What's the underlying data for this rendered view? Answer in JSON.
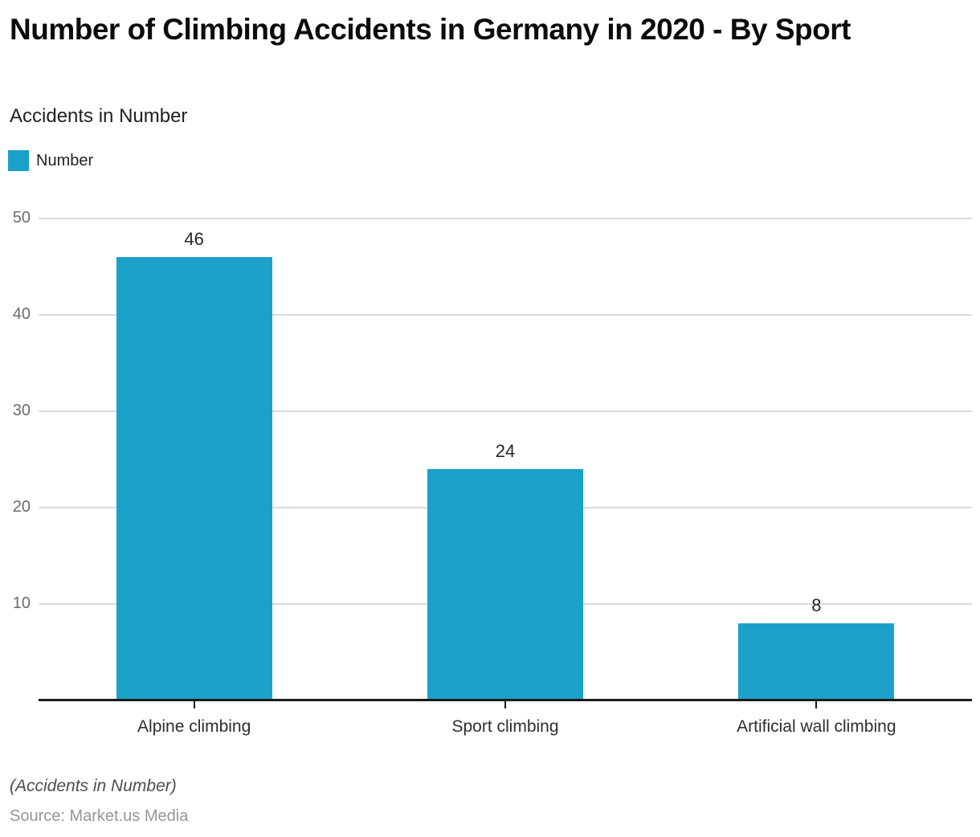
{
  "header": {
    "title": "Number of Climbing Accidents in Germany in 2020 - By Sport",
    "subtitle": "Accidents in Number"
  },
  "legend": {
    "label": "Number",
    "swatch_color": "#1BA1C9"
  },
  "chart_data": {
    "type": "bar",
    "title": "Number of Climbing Accidents in Germany in 2020 - By Sport",
    "subtitle": "Accidents in Number",
    "categories": [
      "Alpine climbing",
      "Sport climbing",
      "Artificial wall climbing"
    ],
    "series": [
      {
        "name": "Number",
        "values": [
          46,
          24,
          8
        ]
      }
    ],
    "values": [
      46,
      24,
      8
    ],
    "value_labels": [
      "46",
      "24",
      "8"
    ],
    "xlabel": "",
    "ylabel": "Accidents in Number",
    "ylim": [
      0,
      50
    ],
    "yticks": [
      10,
      20,
      30,
      40,
      50
    ],
    "grid": true,
    "legend_position": "top-left",
    "bar_color": "#1BA1C9",
    "gridline_color": "#d9d9d9",
    "axis_color": "#1a1a1a"
  },
  "footer": {
    "note": "(Accidents in Number)",
    "source": "Source: Market.us Media"
  }
}
